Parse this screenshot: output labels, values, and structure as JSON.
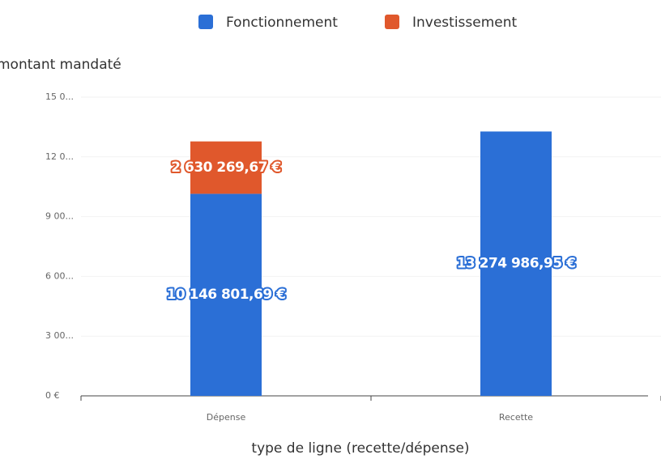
{
  "chart_data": {
    "type": "stacked_bar",
    "y_label": "montant mandaté",
    "x_label": "type de ligne (recette/dépense)",
    "categories": [
      "Dépense",
      "Recette"
    ],
    "series": [
      {
        "name": "Fonctionnement",
        "color": "#2b6fd6",
        "values": [
          10146801.69,
          13274986.95
        ],
        "value_labels": [
          "10 146 801,69 €",
          "13 274 986,95 €"
        ]
      },
      {
        "name": "Investissement",
        "color": "#e0582c",
        "values": [
          2630269.67,
          null
        ],
        "value_labels": [
          "2 630 269,67 €",
          null
        ]
      }
    ],
    "ylim": [
      0,
      15000000
    ],
    "yticks": [
      {
        "value": 0,
        "label": "0 €"
      },
      {
        "value": 3000000,
        "label": "3 00..."
      },
      {
        "value": 6000000,
        "label": "6 00..."
      },
      {
        "value": 9000000,
        "label": "9 00..."
      },
      {
        "value": 12000000,
        "label": "12 0..."
      },
      {
        "value": 15000000,
        "label": "15 0..."
      }
    ],
    "grid": true,
    "legend": "top"
  }
}
